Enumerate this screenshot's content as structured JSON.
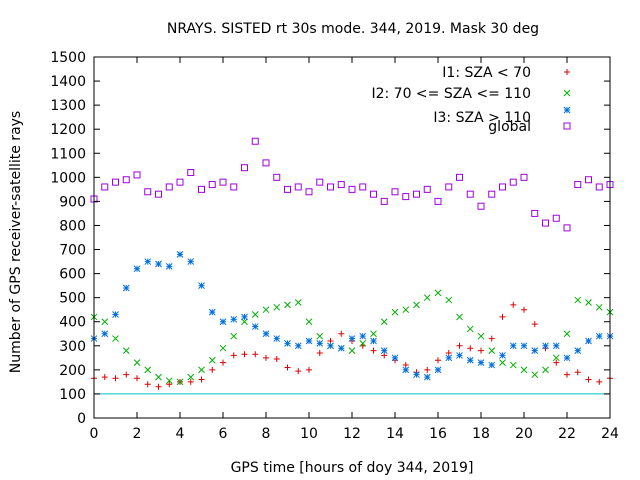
{
  "chart_data": {
    "type": "scatter",
    "title": "NRAYS. SISTED rt 30s mode. 344, 2019. Mask 30 deg",
    "xlabel": "GPS time [hours of doy 344, 2019]",
    "ylabel": "Number of GPS receiver-satellite rays",
    "xlim": [
      0,
      24
    ],
    "ylim": [
      0,
      1500
    ],
    "xticks": [
      "0",
      "2",
      "4",
      "6",
      "8",
      "10",
      "12",
      "14",
      "16",
      "18",
      "20",
      "22",
      "24"
    ],
    "yticks": [
      "0",
      "100",
      "200",
      "300",
      "400",
      "500",
      "600",
      "700",
      "800",
      "900",
      "1000",
      "1100",
      "1200",
      "1300",
      "1400",
      "1500"
    ],
    "grid": false,
    "legend_position": "top-right",
    "reference_line": {
      "y": 100,
      "color": "#00c0c0"
    },
    "series": [
      {
        "name": "I1: SZA < 70",
        "color": "#e00000",
        "marker": "+",
        "x": [
          0,
          0.5,
          1,
          1.5,
          2,
          2.5,
          3,
          3.5,
          4,
          4.5,
          5,
          5.5,
          6,
          6.5,
          7,
          7.5,
          8,
          8.5,
          9,
          9.5,
          10,
          10.5,
          11,
          11.5,
          12,
          12.5,
          13,
          13.5,
          14,
          14.5,
          15,
          15.5,
          16,
          16.5,
          17,
          17.5,
          18,
          18.5,
          19,
          19.5,
          20,
          20.5,
          21,
          21.5,
          22,
          22.5,
          23,
          23.5,
          24
        ],
        "y": [
          165,
          170,
          165,
          180,
          165,
          140,
          130,
          140,
          150,
          150,
          160,
          200,
          230,
          260,
          265,
          265,
          250,
          245,
          210,
          195,
          200,
          270,
          320,
          350,
          320,
          300,
          280,
          260,
          240,
          220,
          190,
          200,
          240,
          270,
          300,
          290,
          280,
          330,
          420,
          470,
          450,
          390,
          290,
          230,
          180,
          190,
          160,
          150,
          165
        ]
      },
      {
        "name": "I2: 70 <= SZA <= 110",
        "color": "#00b000",
        "marker": "x",
        "x": [
          0,
          0.5,
          1,
          1.5,
          2,
          2.5,
          3,
          3.5,
          4,
          4.5,
          5,
          5.5,
          6,
          6.5,
          7,
          7.5,
          8,
          8.5,
          9,
          9.5,
          10,
          10.5,
          11,
          11.5,
          12,
          12.5,
          13,
          13.5,
          14,
          14.5,
          15,
          15.5,
          16,
          16.5,
          17,
          17.5,
          18,
          18.5,
          19,
          19.5,
          20,
          20.5,
          21,
          21.5,
          22,
          22.5,
          23,
          23.5,
          24
        ],
        "y": [
          420,
          400,
          330,
          280,
          230,
          200,
          170,
          155,
          150,
          170,
          200,
          240,
          290,
          340,
          400,
          430,
          450,
          460,
          470,
          480,
          400,
          340,
          300,
          290,
          280,
          310,
          350,
          400,
          440,
          450,
          470,
          500,
          520,
          490,
          420,
          370,
          340,
          280,
          230,
          220,
          200,
          180,
          200,
          250,
          350,
          490,
          480,
          460,
          440
        ]
      },
      {
        "name": "I3: SZA > 110",
        "color": "#0070e0",
        "marker": "*",
        "x": [
          0,
          0.5,
          1,
          1.5,
          2,
          2.5,
          3,
          3.5,
          4,
          4.5,
          5,
          5.5,
          6,
          6.5,
          7,
          7.5,
          8,
          8.5,
          9,
          9.5,
          10,
          10.5,
          11,
          11.5,
          12,
          12.5,
          13,
          13.5,
          14,
          14.5,
          15,
          15.5,
          16,
          16.5,
          17,
          17.5,
          18,
          18.5,
          19,
          19.5,
          20,
          20.5,
          21,
          21.5,
          22,
          22.5,
          23,
          23.5,
          24
        ],
        "y": [
          330,
          350,
          430,
          540,
          620,
          650,
          640,
          630,
          680,
          650,
          550,
          440,
          400,
          410,
          420,
          380,
          350,
          330,
          310,
          300,
          320,
          310,
          300,
          290,
          330,
          340,
          320,
          280,
          250,
          200,
          180,
          170,
          200,
          250,
          260,
          240,
          230,
          220,
          260,
          300,
          300,
          280,
          300,
          300,
          250,
          280,
          320,
          340,
          340
        ]
      },
      {
        "name": "global",
        "color": "#a000e0",
        "marker": "square",
        "x": [
          0,
          0.5,
          1,
          1.5,
          2,
          2.5,
          3,
          3.5,
          4,
          4.5,
          5,
          5.5,
          6,
          6.5,
          7,
          7.5,
          8,
          8.5,
          9,
          9.5,
          10,
          10.5,
          11,
          11.5,
          12,
          12.5,
          13,
          13.5,
          14,
          14.5,
          15,
          15.5,
          16,
          16.5,
          17,
          17.5,
          18,
          18.5,
          19,
          19.5,
          20,
          20.5,
          21,
          21.5,
          22,
          22.5,
          23,
          23.5,
          24
        ],
        "y": [
          910,
          960,
          980,
          990,
          1010,
          940,
          930,
          960,
          980,
          1020,
          950,
          970,
          980,
          960,
          1040,
          1150,
          1060,
          1000,
          950,
          960,
          940,
          980,
          960,
          970,
          950,
          960,
          930,
          900,
          940,
          920,
          930,
          950,
          900,
          960,
          1000,
          930,
          880,
          930,
          960,
          980,
          1000,
          850,
          810,
          830,
          790,
          970,
          990,
          960,
          970
        ]
      }
    ]
  }
}
